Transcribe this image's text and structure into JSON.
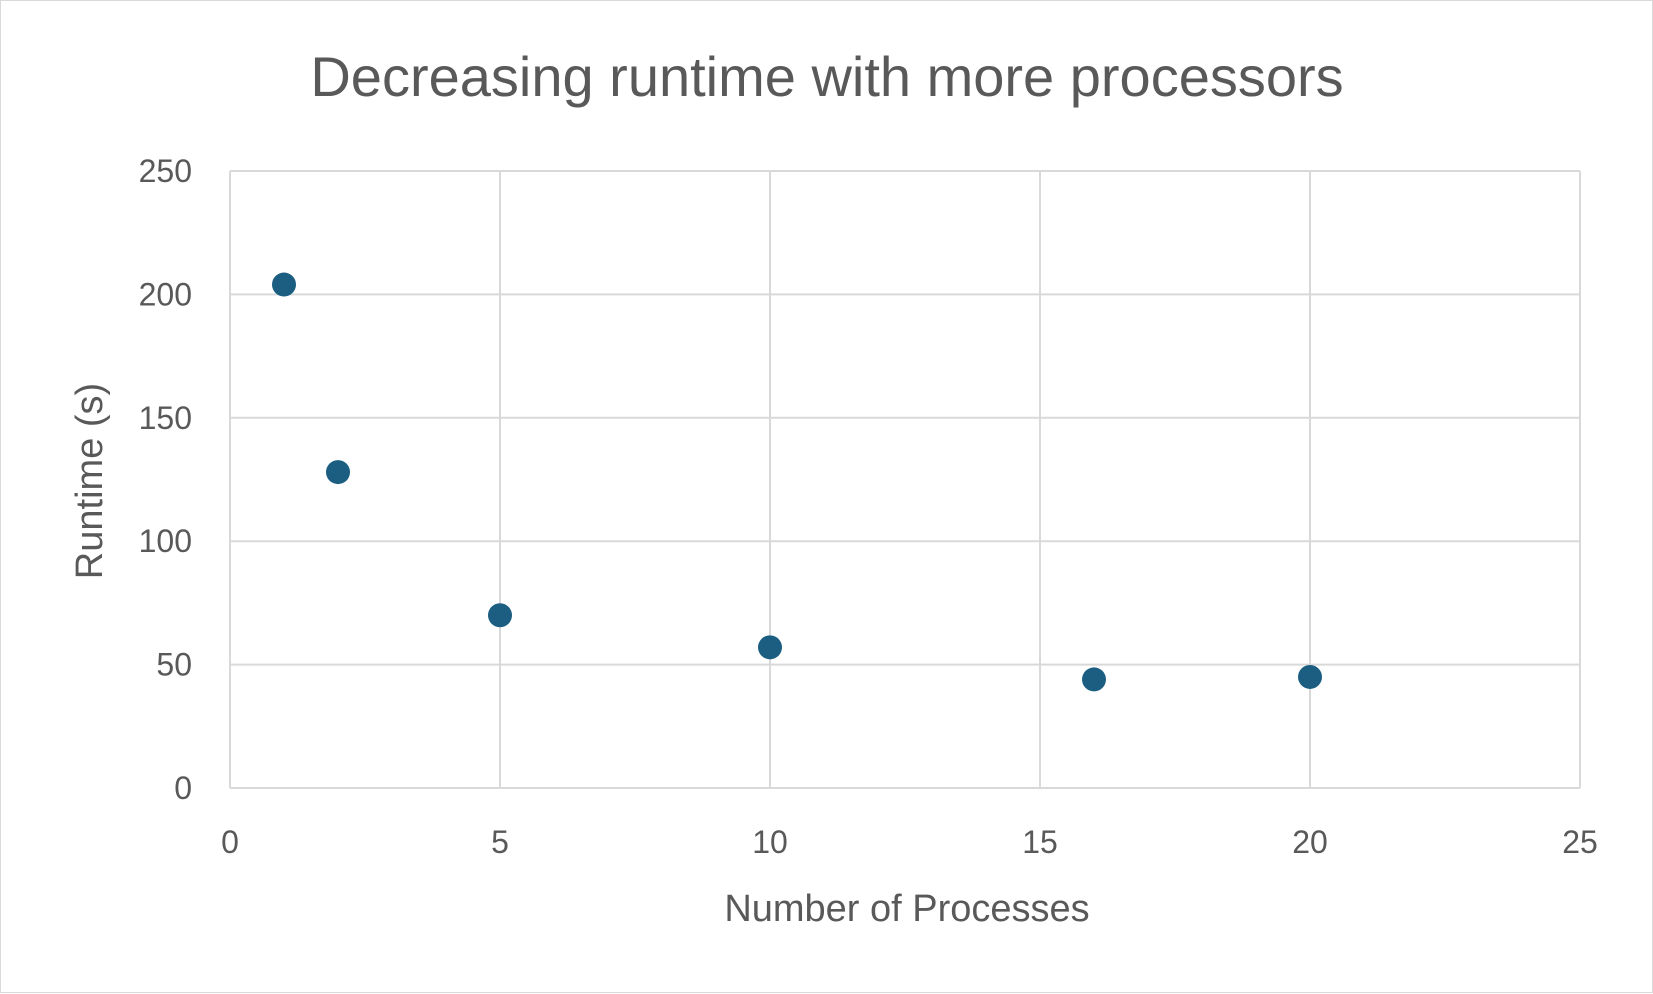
{
  "chart_data": {
    "type": "scatter",
    "title": "Decreasing runtime with more processors",
    "xlabel": "Number of Processes",
    "ylabel": "Runtime (s)",
    "xlim": [
      0,
      25
    ],
    "ylim": [
      0,
      250
    ],
    "x_ticks": [
      "0",
      "5",
      "10",
      "15",
      "20",
      "25"
    ],
    "y_ticks": [
      "0",
      "50",
      "100",
      "150",
      "200",
      "250"
    ],
    "grid": true,
    "legend": "none",
    "marker_color": "#1b5e82",
    "gridline_color": "#d9d9d9",
    "text_color": "#595959",
    "series": [
      {
        "x": [
          1,
          2,
          5,
          10,
          16,
          20
        ],
        "y": [
          204,
          128,
          70,
          57,
          44,
          45
        ]
      }
    ]
  }
}
